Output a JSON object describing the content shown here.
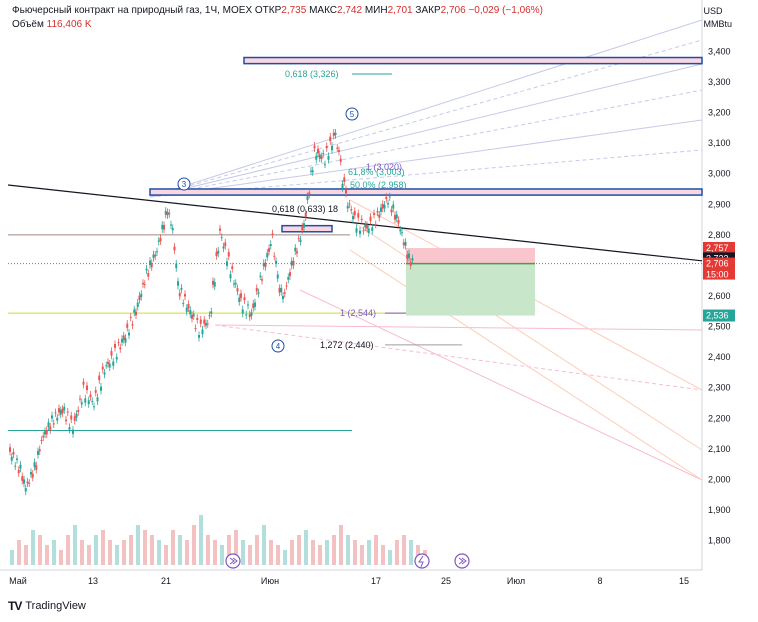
{
  "header": {
    "title": "Фьючерсный контракт на природный газ, 1Ч, MOEX",
    "open_label": "ОТКР",
    "open": "2,735",
    "high_label": "МАКС",
    "high": "2,742",
    "low_label": "МИН",
    "low": "2,701",
    "close_label": "ЗАКР",
    "close": "2,706",
    "change": "−0,029 (−1,06%)",
    "volume_label": "Объём",
    "volume": "116,406 K"
  },
  "currency": {
    "line1": "USD",
    "line2": "MMBtu"
  },
  "price_badges": {
    "a": {
      "value": "2,757",
      "color": "#e53935"
    },
    "b": {
      "value": "2,723",
      "color": "#131722"
    },
    "c": {
      "value": "2,706",
      "time": "15:00",
      "color": "#e53935"
    },
    "d": {
      "value": "2,536",
      "color": "#26a69a"
    }
  },
  "annotations": {
    "fib618_top": "0,618 (3,326)",
    "fib618_mid": "0,618 (0,633) 18",
    "fib1618": "61,8% (3,003)",
    "fib50": "50,0% (2,958)",
    "fib1": "1 (3,020)",
    "fib1_low": "1 (2,544)",
    "fib1272": "1,272 (2,440)",
    "wave3": "3",
    "wave4": "4",
    "wave5": "5"
  },
  "branding": {
    "text": "TradingView"
  },
  "chart_data": {
    "type": "candlestick",
    "ylim": [
      1.72,
      3.47
    ],
    "y_ticks": [
      "3,400",
      "3,300",
      "3,200",
      "3,100",
      "3,000",
      "2,900",
      "2,800",
      "2,600",
      "2,500",
      "2,400",
      "2,300",
      "2,200",
      "2,100",
      "2,000",
      "1,900",
      "1,800"
    ],
    "x_ticks": [
      "Май",
      "13",
      "21",
      "Июн",
      "17",
      "25",
      "Июл",
      "8",
      "15"
    ],
    "price_path": [
      [
        0,
        2.09
      ],
      [
        2,
        2.03
      ],
      [
        3,
        1.97
      ],
      [
        5,
        2.05
      ],
      [
        6,
        2.13
      ],
      [
        8,
        2.19
      ],
      [
        10,
        2.23
      ],
      [
        12,
        2.17
      ],
      [
        14,
        2.29
      ],
      [
        16,
        2.25
      ],
      [
        18,
        2.36
      ],
      [
        20,
        2.41
      ],
      [
        22,
        2.47
      ],
      [
        24,
        2.55
      ],
      [
        26,
        2.67
      ],
      [
        28,
        2.75
      ],
      [
        30,
        2.88
      ],
      [
        31,
        2.82
      ],
      [
        32,
        2.63
      ],
      [
        34,
        2.56
      ],
      [
        36,
        2.49
      ],
      [
        38,
        2.52
      ],
      [
        40,
        2.81
      ],
      [
        42,
        2.69
      ],
      [
        44,
        2.58
      ],
      [
        46,
        2.54
      ],
      [
        48,
        2.67
      ],
      [
        50,
        2.79
      ],
      [
        51,
        2.65
      ],
      [
        52,
        2.59
      ],
      [
        54,
        2.72
      ],
      [
        56,
        2.83
      ],
      [
        58,
        3.07
      ],
      [
        60,
        3.05
      ],
      [
        62,
        3.13
      ],
      [
        63,
        3.02
      ],
      [
        64,
        2.92
      ],
      [
        66,
        2.84
      ],
      [
        68,
        2.82
      ],
      [
        70,
        2.86
      ],
      [
        72,
        2.92
      ],
      [
        74,
        2.84
      ],
      [
        76,
        2.72
      ],
      [
        77,
        2.706
      ]
    ],
    "volume_profile": [
      0.3,
      0.5,
      0.4,
      0.7,
      0.6,
      0.4,
      0.5,
      0.3,
      0.6,
      0.8,
      0.5,
      0.4,
      0.6,
      0.7,
      0.5,
      0.4,
      0.5,
      0.6,
      0.8,
      0.7,
      0.6,
      0.5,
      0.4,
      0.7,
      0.6,
      0.5,
      0.8,
      1.0,
      0.6,
      0.5,
      0.4,
      0.6,
      0.7,
      0.5,
      0.4,
      0.6,
      0.8,
      0.5,
      0.4,
      0.3,
      0.5,
      0.6,
      0.7,
      0.5,
      0.4,
      0.5,
      0.6,
      0.8,
      0.6,
      0.5,
      0.4,
      0.5,
      0.6,
      0.4,
      0.3,
      0.5,
      0.6,
      0.5,
      0.4,
      0.3
    ],
    "levels": {
      "top_band": [
        3.36,
        3.38
      ],
      "wave3_band": [
        2.93,
        2.95
      ],
      "small_band": [
        2.81,
        2.83
      ],
      "pink_zone": [
        2.706,
        2.757
      ],
      "green_zone": [
        2.536,
        2.706
      ],
      "bottom_line": 2.16,
      "yellow_line": 2.544
    }
  }
}
